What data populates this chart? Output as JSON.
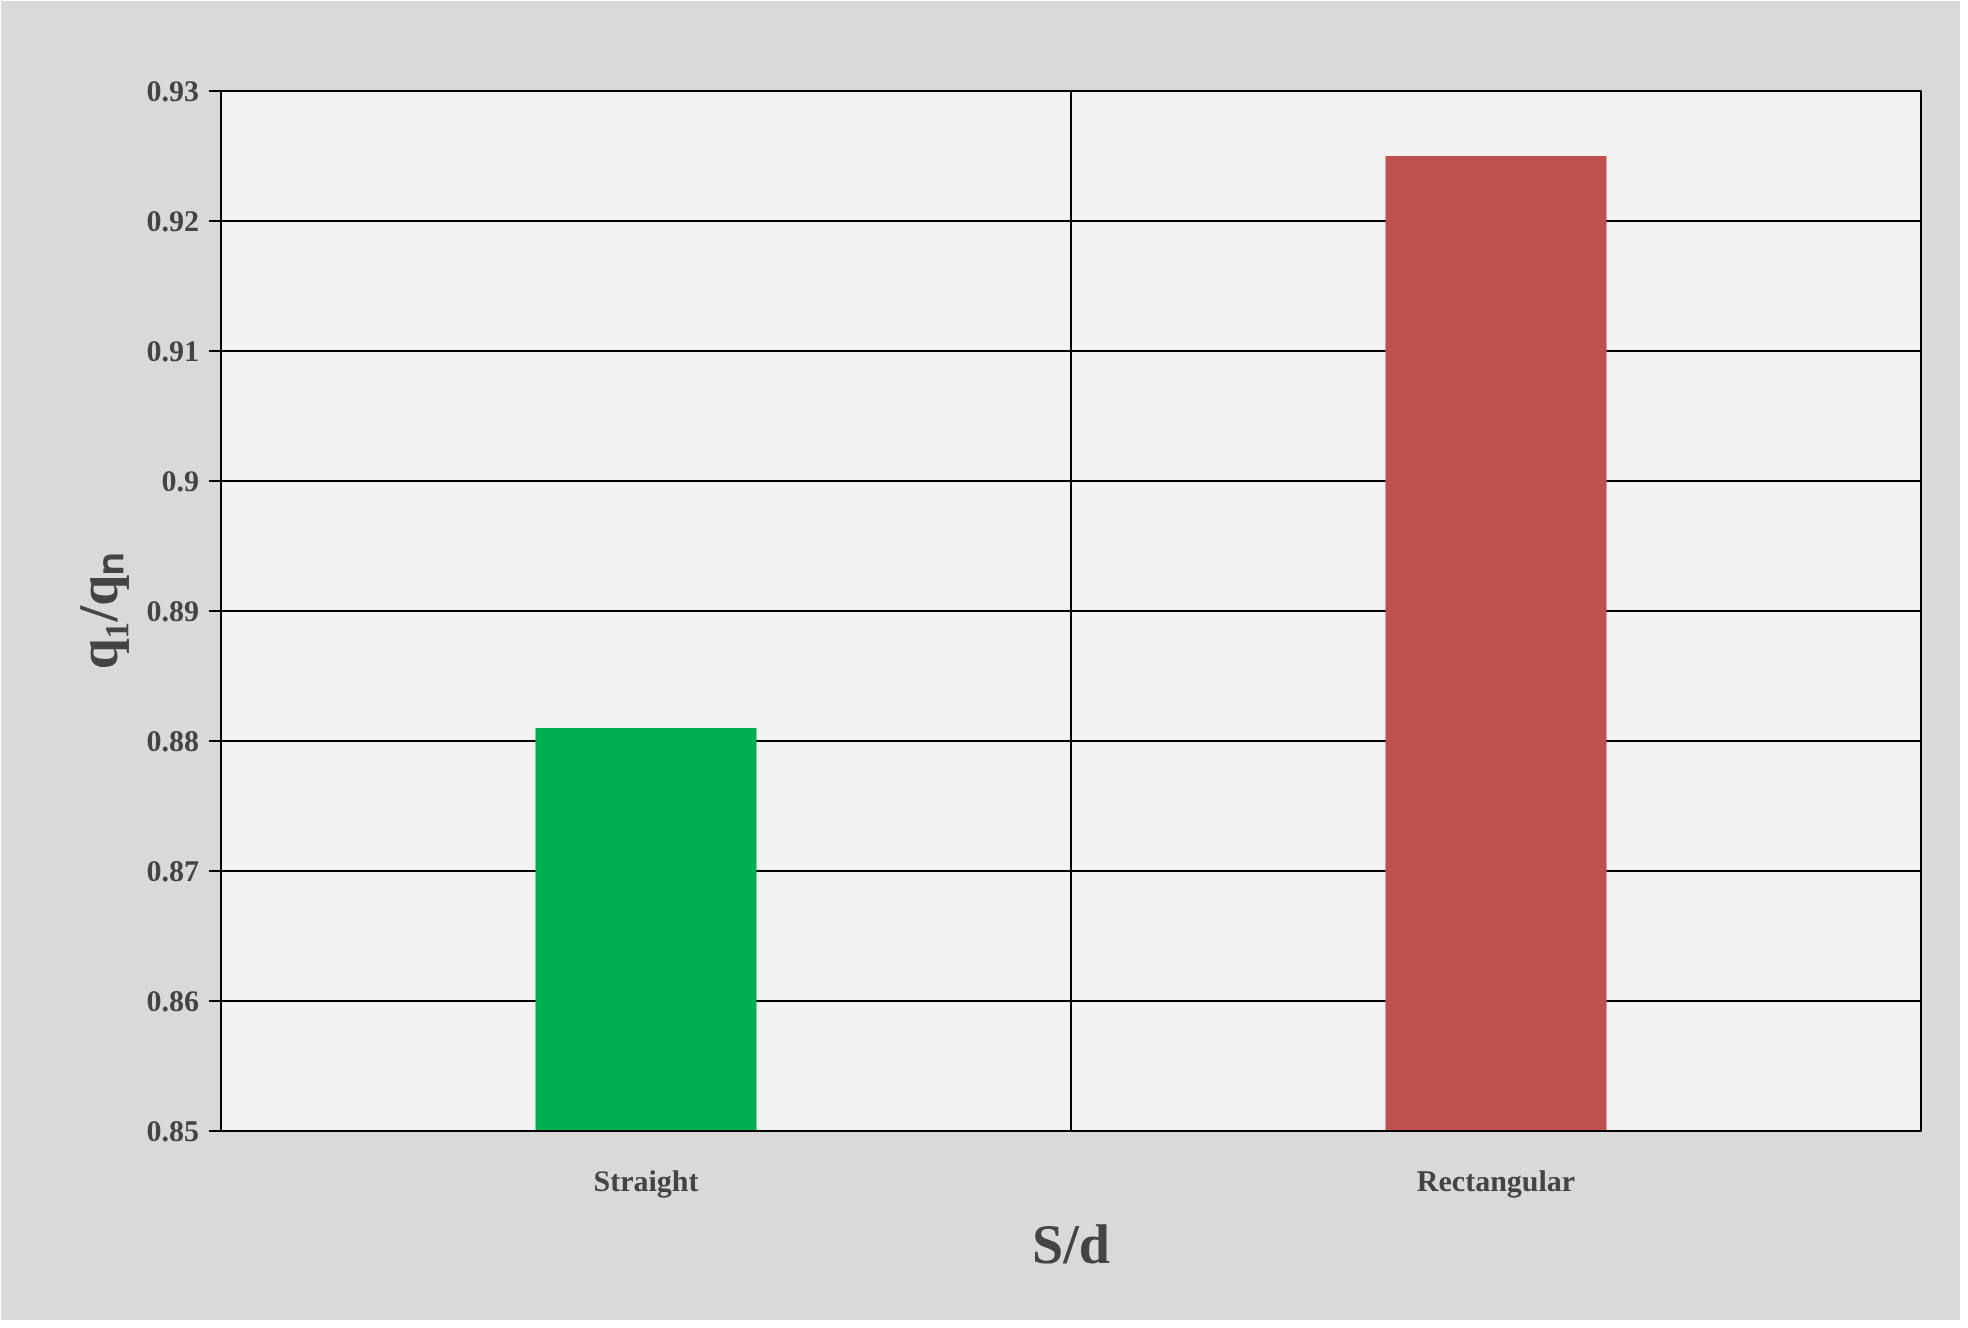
{
  "chart_data": {
    "type": "bar",
    "xlabel": "S/d",
    "ylabel": "q₁/qₙ",
    "categories": [
      "Straight",
      "Rectangular"
    ],
    "values": [
      0.881,
      0.925
    ],
    "colors": [
      "#00b050",
      "#c0504d"
    ],
    "ylim": [
      0.85,
      0.93
    ],
    "yticks": [
      0.85,
      0.86,
      0.87,
      0.88,
      0.89,
      {
        "value": 0.9,
        "label": "0.9"
      },
      0.91,
      0.92,
      0.93
    ],
    "grid": true
  }
}
